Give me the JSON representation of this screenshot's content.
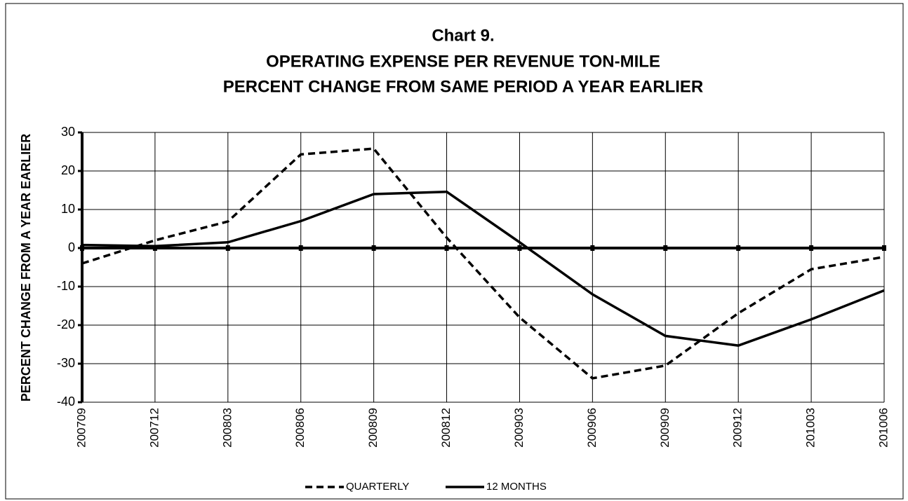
{
  "chart_data": {
    "type": "line",
    "title": [
      "Chart 9.",
      "OPERATING EXPENSE PER REVENUE TON-MILE",
      "PERCENT CHANGE FROM SAME PERIOD A YEAR EARLIER"
    ],
    "y_label": "PERCENT CHANGE FROM A YEAR EARLIER",
    "categories": [
      "200709",
      "200712",
      "200803",
      "200806",
      "200809",
      "200812",
      "200903",
      "200906",
      "200909",
      "200912",
      "201003",
      "201006"
    ],
    "series": [
      {
        "name": "QUARTERLY",
        "color": "#000000",
        "style": "dashed",
        "values": [
          -4,
          2,
          6.9,
          24.3,
          25.8,
          2.7,
          -18,
          -33.8,
          -30.5,
          -16.9,
          -5.5,
          -2.3
        ]
      },
      {
        "name": "12 MONTHS",
        "color": "#000000",
        "style": "solid",
        "values": [
          0.8,
          0.5,
          1.5,
          7,
          14,
          14.6,
          1.5,
          -12,
          -22.8,
          -25.3,
          -18.5,
          -11
        ]
      }
    ],
    "ylim": [
      -40,
      30
    ],
    "yticks": [
      -40,
      -30,
      -20,
      -10,
      0,
      10,
      20,
      30
    ],
    "grid": true,
    "legend": "bottom"
  }
}
